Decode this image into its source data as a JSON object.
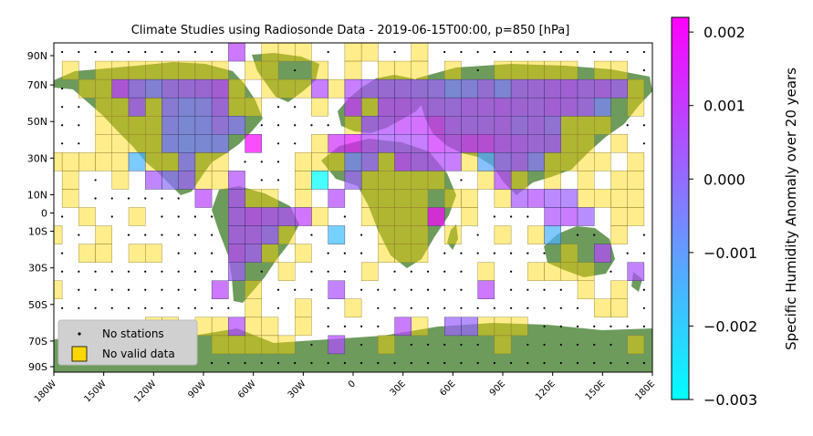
{
  "chart_data": {
    "type": "heatmap",
    "title": "Climate Studies using Radiosonde Data - 2019-06-15T00:00, p=850 [hPa]",
    "colorbar_label": "Specific Humidity Anomaly over 20 years",
    "colorbar_ticks": [
      "0.002",
      "0.001",
      "0.000",
      "−0.001",
      "−0.002",
      "−0.003"
    ],
    "colorbar_range": [
      -0.003,
      0.0022
    ],
    "colormap": [
      "#00ffff",
      "#ff00ff"
    ],
    "x_ticks": [
      "180W",
      "150W",
      "120W",
      "90W",
      "60W",
      "30W",
      "0",
      "30E",
      "60E",
      "90E",
      "120E",
      "150E",
      "180E"
    ],
    "y_ticks": [
      "90N",
      "70N",
      "50N",
      "30N",
      "10N",
      "0",
      "10S",
      "30S",
      "50S",
      "70S",
      "90S"
    ],
    "xlim": [
      -180,
      180
    ],
    "ylim": [
      -90,
      90
    ],
    "cell_size_deg": 10,
    "no_data_color": "#ffd700",
    "legend": {
      "placement": "lower-left",
      "no_stations_label": "No stations",
      "no_valid_label": "No valid data"
    },
    "anomaly_cells": [
      [
        -70,
        85,
        0.0008
      ],
      [
        -140,
        65,
        0.001
      ],
      [
        -130,
        65,
        0.0002
      ],
      [
        -120,
        65,
        -0.0002
      ],
      [
        -110,
        65,
        0.0003
      ],
      [
        -100,
        65,
        0.0004
      ],
      [
        -90,
        65,
        0.0005
      ],
      [
        -80,
        65,
        0.0008
      ],
      [
        -20,
        65,
        0.0006
      ],
      [
        0,
        65,
        0.0006
      ],
      [
        10,
        65,
        0.0004
      ],
      [
        20,
        65,
        0.0004
      ],
      [
        30,
        65,
        0.0004
      ],
      [
        40,
        65,
        0.0003
      ],
      [
        50,
        65,
        0.0002
      ],
      [
        60,
        65,
        -0.0004
      ],
      [
        70,
        65,
        -0.0002
      ],
      [
        80,
        65,
        0.0003
      ],
      [
        90,
        65,
        -0.0003
      ],
      [
        100,
        65,
        0.0004
      ],
      [
        110,
        65,
        0.0005
      ],
      [
        120,
        65,
        0.0006
      ],
      [
        130,
        65,
        0.0007
      ],
      [
        140,
        65,
        0.0005
      ],
      [
        150,
        65,
        0.0006
      ],
      [
        160,
        65,
        0.0004
      ],
      [
        -130,
        55,
        0.0005
      ],
      [
        -110,
        55,
        0.0
      ],
      [
        -100,
        55,
        -0.0003
      ],
      [
        -90,
        55,
        -0.0002
      ],
      [
        -80,
        55,
        0.0005
      ],
      [
        0,
        55,
        0.0011
      ],
      [
        20,
        55,
        0.0008
      ],
      [
        30,
        55,
        0.0008
      ],
      [
        40,
        55,
        0.0007
      ],
      [
        50,
        55,
        0.0005
      ],
      [
        60,
        55,
        0.0004
      ],
      [
        70,
        55,
        0.0006
      ],
      [
        80,
        55,
        0.0006
      ],
      [
        90,
        55,
        0.0007
      ],
      [
        100,
        55,
        0.0006
      ],
      [
        110,
        55,
        0.0005
      ],
      [
        120,
        55,
        0.0007
      ],
      [
        130,
        55,
        0.0006
      ],
      [
        140,
        55,
        0.0004
      ],
      [
        150,
        55,
        -0.0005
      ],
      [
        -110,
        45,
        -0.0002
      ],
      [
        -100,
        45,
        -0.0004
      ],
      [
        -90,
        45,
        -0.0003
      ],
      [
        -80,
        45,
        0.0002
      ],
      [
        -70,
        45,
        -0.0002
      ],
      [
        10,
        45,
        0.0005
      ],
      [
        20,
        45,
        0.0006
      ],
      [
        30,
        45,
        0.0009
      ],
      [
        40,
        45,
        0.001
      ],
      [
        50,
        45,
        0.0012
      ],
      [
        60,
        45,
        0.0006
      ],
      [
        70,
        45,
        0.0005
      ],
      [
        80,
        45,
        0.0005
      ],
      [
        90,
        45,
        0.0006
      ],
      [
        100,
        45,
        0.0003
      ],
      [
        110,
        45,
        0.0005
      ],
      [
        120,
        45,
        0.0002
      ],
      [
        -110,
        35,
        -0.0003
      ],
      [
        -100,
        35,
        -0.0005
      ],
      [
        -90,
        35,
        -0.0004
      ],
      [
        -80,
        35,
        -0.0003
      ],
      [
        -60,
        35,
        0.002
      ],
      [
        -10,
        35,
        0.0012
      ],
      [
        0,
        35,
        0.0016
      ],
      [
        10,
        35,
        0.0008
      ],
      [
        20,
        35,
        0.0004
      ],
      [
        30,
        35,
        0.0005
      ],
      [
        40,
        35,
        0.0006
      ],
      [
        50,
        35,
        0.0012
      ],
      [
        60,
        35,
        0.0009
      ],
      [
        70,
        35,
        0.0012
      ],
      [
        80,
        35,
        0.0012
      ],
      [
        90,
        35,
        0.0008
      ],
      [
        100,
        35,
        0.0007
      ],
      [
        110,
        35,
        0.0005
      ],
      [
        120,
        35,
        0.0005
      ],
      [
        -130,
        25,
        -0.0015
      ],
      [
        -100,
        25,
        -0.0001
      ],
      [
        0,
        25,
        -0.0005
      ],
      [
        10,
        25,
        0.0002
      ],
      [
        30,
        25,
        0.0009
      ],
      [
        40,
        25,
        0.0006
      ],
      [
        50,
        25,
        0.0007
      ],
      [
        60,
        25,
        0.0006
      ],
      [
        80,
        25,
        -0.0012
      ],
      [
        90,
        25,
        0.0002
      ],
      [
        100,
        25,
        0.0005
      ],
      [
        110,
        25,
        -0.0002
      ],
      [
        -120,
        15,
        0.0004
      ],
      [
        -110,
        15,
        -0.0001
      ],
      [
        -100,
        15,
        0.0002
      ],
      [
        -70,
        15,
        0.0006
      ],
      [
        -20,
        15,
        -0.003
      ],
      [
        0,
        15,
        0.0002
      ],
      [
        90,
        15,
        0.0008
      ],
      [
        -90,
        5,
        0.0008
      ],
      [
        -70,
        5,
        0.0006
      ],
      [
        -10,
        5,
        0.0007
      ],
      [
        100,
        5,
        0.0004
      ],
      [
        110,
        5,
        0.0006
      ],
      [
        120,
        5,
        0.0003
      ],
      [
        130,
        5,
        0.0002
      ],
      [
        -70,
        -5,
        0.0006
      ],
      [
        -60,
        -5,
        0.0009
      ],
      [
        -50,
        -5,
        0.0007
      ],
      [
        -40,
        -5,
        0.0006
      ],
      [
        -30,
        -5,
        0.0009
      ],
      [
        50,
        -5,
        0.0021
      ],
      [
        120,
        -5,
        0.0005
      ],
      [
        130,
        -5,
        0.0007
      ],
      [
        140,
        -5,
        0.0002
      ],
      [
        -70,
        -15,
        0.0006
      ],
      [
        -60,
        -15,
        0.0006
      ],
      [
        -50,
        -15,
        0.0003
      ],
      [
        -10,
        -15,
        -0.0017
      ],
      [
        120,
        -15,
        -0.0014
      ],
      [
        -70,
        -25,
        0.0008
      ],
      [
        -60,
        -25,
        0.0004
      ],
      [
        150,
        -25,
        0.0007
      ],
      [
        -70,
        -35,
        0.0003
      ],
      [
        170,
        -35,
        0.0005
      ],
      [
        -80,
        -45,
        0.0008
      ],
      [
        -10,
        -45,
        0.0005
      ],
      [
        80,
        -45,
        0.0008
      ],
      [
        -70,
        -65,
        0.0007
      ],
      [
        30,
        -65,
        0.0007
      ],
      [
        60,
        -65,
        0.0002
      ],
      [
        70,
        -65,
        0.0001
      ],
      [
        -10,
        -75,
        0.0006
      ]
    ],
    "no_valid_cells": [
      [
        -50,
        85
      ],
      [
        -40,
        85
      ],
      [
        -30,
        85
      ],
      [
        0,
        85
      ],
      [
        10,
        85
      ],
      [
        40,
        85
      ],
      [
        -170,
        75
      ],
      [
        -150,
        75
      ],
      [
        -140,
        75
      ],
      [
        -130,
        75
      ],
      [
        -120,
        75
      ],
      [
        -110,
        75
      ],
      [
        -100,
        75
      ],
      [
        -90,
        75
      ],
      [
        -80,
        75
      ],
      [
        -60,
        75
      ],
      [
        -50,
        75
      ],
      [
        -20,
        75
      ],
      [
        0,
        75
      ],
      [
        20,
        75
      ],
      [
        30,
        75
      ],
      [
        40,
        75
      ],
      [
        60,
        75
      ],
      [
        90,
        75
      ],
      [
        100,
        75
      ],
      [
        110,
        75
      ],
      [
        120,
        75
      ],
      [
        130,
        75
      ],
      [
        150,
        75
      ],
      [
        160,
        75
      ],
      [
        -160,
        65
      ],
      [
        -150,
        65
      ],
      [
        -70,
        65
      ],
      [
        -50,
        65
      ],
      [
        -40,
        65
      ],
      [
        -30,
        65
      ],
      [
        -10,
        65
      ],
      [
        170,
        65
      ],
      [
        -150,
        55
      ],
      [
        -140,
        55
      ],
      [
        -120,
        55
      ],
      [
        -70,
        55
      ],
      [
        -60,
        55
      ],
      [
        -20,
        55
      ],
      [
        10,
        55
      ],
      [
        170,
        55
      ],
      [
        -150,
        45
      ],
      [
        -140,
        45
      ],
      [
        -130,
        45
      ],
      [
        -120,
        45
      ],
      [
        0,
        45
      ],
      [
        130,
        45
      ],
      [
        140,
        45
      ],
      [
        150,
        45
      ],
      [
        -150,
        35
      ],
      [
        -140,
        35
      ],
      [
        -130,
        35
      ],
      [
        -120,
        35
      ],
      [
        -20,
        35
      ],
      [
        130,
        35
      ],
      [
        140,
        35
      ],
      [
        160,
        35
      ],
      [
        -180,
        25
      ],
      [
        -170,
        25
      ],
      [
        -160,
        25
      ],
      [
        -150,
        25
      ],
      [
        -140,
        25
      ],
      [
        -120,
        25
      ],
      [
        -110,
        25
      ],
      [
        -90,
        25
      ],
      [
        -80,
        25
      ],
      [
        -30,
        25
      ],
      [
        -20,
        25
      ],
      [
        -10,
        25
      ],
      [
        20,
        25
      ],
      [
        70,
        25
      ],
      [
        120,
        25
      ],
      [
        130,
        25
      ],
      [
        140,
        25
      ],
      [
        150,
        25
      ],
      [
        170,
        25
      ],
      [
        -170,
        15
      ],
      [
        -140,
        15
      ],
      [
        -90,
        15
      ],
      [
        -80,
        15
      ],
      [
        -30,
        15
      ],
      [
        10,
        15
      ],
      [
        20,
        15
      ],
      [
        30,
        15
      ],
      [
        40,
        15
      ],
      [
        50,
        15
      ],
      [
        80,
        15
      ],
      [
        100,
        15
      ],
      [
        120,
        15
      ],
      [
        140,
        15
      ],
      [
        160,
        15
      ],
      [
        170,
        15
      ],
      [
        -170,
        5
      ],
      [
        -60,
        5
      ],
      [
        -50,
        5
      ],
      [
        -30,
        5
      ],
      [
        10,
        5
      ],
      [
        20,
        5
      ],
      [
        30,
        5
      ],
      [
        40,
        5
      ],
      [
        60,
        5
      ],
      [
        70,
        5
      ],
      [
        90,
        5
      ],
      [
        140,
        5
      ],
      [
        150,
        5
      ],
      [
        160,
        5
      ],
      [
        170,
        5
      ],
      [
        -160,
        -5
      ],
      [
        -130,
        -5
      ],
      [
        -20,
        -5
      ],
      [
        10,
        -5
      ],
      [
        20,
        -5
      ],
      [
        30,
        -5
      ],
      [
        40,
        -5
      ],
      [
        70,
        -5
      ],
      [
        160,
        -5
      ],
      [
        170,
        -5
      ],
      [
        -180,
        -15
      ],
      [
        -150,
        -15
      ],
      [
        -40,
        -15
      ],
      [
        20,
        -15
      ],
      [
        30,
        -15
      ],
      [
        40,
        -15
      ],
      [
        60,
        -15
      ],
      [
        90,
        -15
      ],
      [
        110,
        -15
      ],
      [
        160,
        -15
      ],
      [
        -160,
        -25
      ],
      [
        -150,
        -25
      ],
      [
        -130,
        -25
      ],
      [
        -120,
        -25
      ],
      [
        -50,
        -25
      ],
      [
        -30,
        -25
      ],
      [
        20,
        -25
      ],
      [
        30,
        -25
      ],
      [
        40,
        -25
      ],
      [
        130,
        -25
      ],
      [
        -40,
        -35
      ],
      [
        10,
        -35
      ],
      [
        80,
        -35
      ],
      [
        110,
        -35
      ],
      [
        120,
        -35
      ],
      [
        130,
        -35
      ],
      [
        140,
        -35
      ],
      [
        -180,
        -45
      ],
      [
        -60,
        -45
      ],
      [
        140,
        -45
      ],
      [
        160,
        -45
      ],
      [
        -60,
        -55
      ],
      [
        -30,
        -55
      ],
      [
        0,
        -55
      ],
      [
        150,
        -55
      ],
      [
        160,
        -55
      ],
      [
        -120,
        -65
      ],
      [
        -110,
        -65
      ],
      [
        -90,
        -65
      ],
      [
        -80,
        -65
      ],
      [
        -60,
        -65
      ],
      [
        -50,
        -65
      ],
      [
        -30,
        -65
      ],
      [
        40,
        -65
      ],
      [
        80,
        -65
      ],
      [
        90,
        -65
      ],
      [
        100,
        -65
      ],
      [
        -120,
        -75
      ],
      [
        -110,
        -75
      ],
      [
        -100,
        -75
      ],
      [
        -80,
        -75
      ],
      [
        -70,
        -75
      ],
      [
        -60,
        -75
      ],
      [
        -50,
        -75
      ],
      [
        -40,
        -75
      ],
      [
        20,
        -75
      ],
      [
        90,
        -75
      ],
      [
        170,
        -75
      ]
    ]
  }
}
